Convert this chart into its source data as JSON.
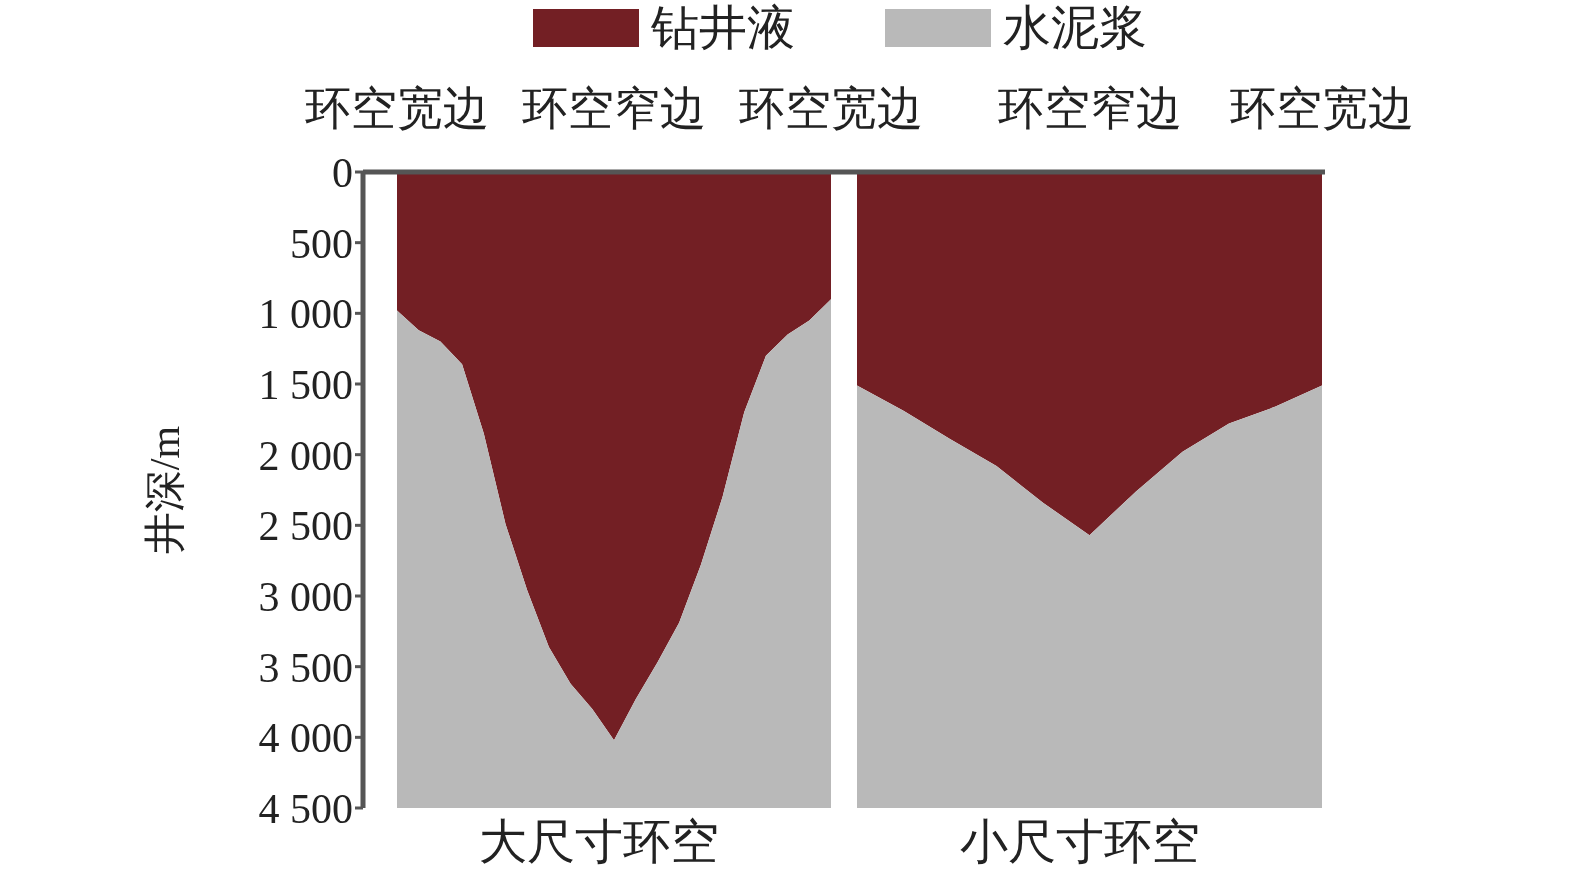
{
  "chart_data": [
    {
      "type": "area",
      "stacked": true,
      "legend": "top",
      "xlabel": "大尺寸环空",
      "ylabel": "井深/m",
      "categories": [
        "环空宽边",
        null,
        null,
        null,
        null,
        null,
        null,
        null,
        null,
        null,
        "环空窄边",
        null,
        null,
        null,
        null,
        null,
        null,
        null,
        null,
        null,
        "环空宽边"
      ],
      "ylim": [
        4500,
        0
      ],
      "yticks": [
        0,
        500,
        {
          "value": 1000,
          "label": "1 000"
        },
        {
          "value": 1500,
          "label": "1 500"
        },
        {
          "value": 2000,
          "label": "2 000"
        },
        {
          "value": 2500,
          "label": "2 500"
        },
        {
          "value": 3000,
          "label": "3 000"
        },
        {
          "value": 3500,
          "label": "3 500"
        },
        {
          "value": 4000,
          "label": "4 000"
        },
        {
          "value": 4500,
          "label": "4 500"
        }
      ],
      "series": [
        {
          "name": "钻井液",
          "color": "#731f24",
          "values": [
            980,
            1120,
            1200,
            1360,
            1850,
            2490,
            2960,
            3360,
            3620,
            3800,
            4020,
            3730,
            3470,
            3190,
            2780,
            2300,
            1700,
            1300,
            1150,
            1050,
            900
          ]
        },
        {
          "name": "水泥浆",
          "color": "#b9b9b9",
          "values": [
            3520,
            3380,
            3300,
            3140,
            2650,
            2010,
            1540,
            1140,
            880,
            700,
            480,
            770,
            1030,
            1310,
            1720,
            2200,
            2800,
            3200,
            3350,
            3450,
            3600
          ]
        }
      ]
    },
    {
      "type": "area",
      "stacked": true,
      "xlabel": "小尺寸环空",
      "tick_labels": "x",
      "categories": [
        null,
        null,
        null,
        null,
        null,
        "环空窄边",
        null,
        null,
        null,
        null,
        "环空宽边"
      ],
      "ylim": [
        4500,
        0
      ],
      "series": [
        {
          "color": "#731f24",
          "values": [
            1510,
            1690,
            1890,
            2080,
            2340,
            2570,
            2260,
            1980,
            1780,
            1660,
            1510
          ]
        },
        {
          "color": "#b9b9b9",
          "values": [
            2990,
            2810,
            2610,
            2420,
            2160,
            1930,
            2240,
            2520,
            2720,
            2840,
            2990
          ]
        }
      ]
    }
  ]
}
